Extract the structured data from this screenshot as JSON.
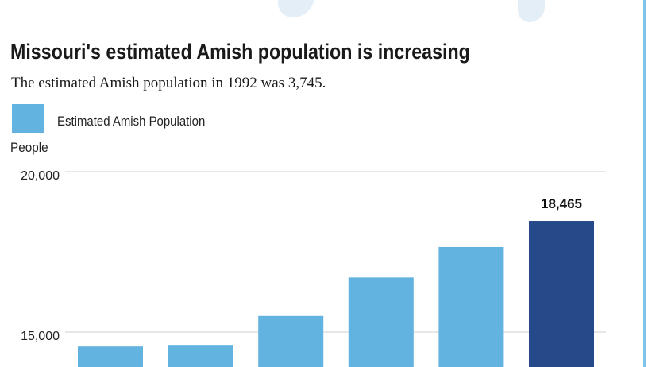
{
  "title": "Missouri's estimated Amish population is increasing",
  "subtitle": "The estimated Amish population in 1992 was 3,745.",
  "legend": {
    "label": "Estimated Amish Population",
    "color": "#62b3e0"
  },
  "y_unit": "People",
  "chart_data": {
    "type": "bar",
    "categories": [
      "",
      "",
      "",
      "",
      "",
      ""
    ],
    "values": [
      14550,
      14600,
      15500,
      16700,
      17650,
      18465
    ],
    "colors": [
      "#62b3e0",
      "#62b3e0",
      "#62b3e0",
      "#62b3e0",
      "#62b3e0",
      "#264a89"
    ],
    "value_labels": [
      "",
      "",
      "",
      "",
      "",
      "18,465"
    ],
    "y_ticks": [
      {
        "value": 15000,
        "label": "15,000"
      },
      {
        "value": 20000,
        "label": "20,000"
      }
    ],
    "ylabel": "People",
    "series": [
      {
        "name": "Estimated Amish Population",
        "values": [
          14550,
          14600,
          15500,
          16700,
          17650,
          18465
        ]
      }
    ],
    "grid": true,
    "legend_position": "top-left"
  }
}
